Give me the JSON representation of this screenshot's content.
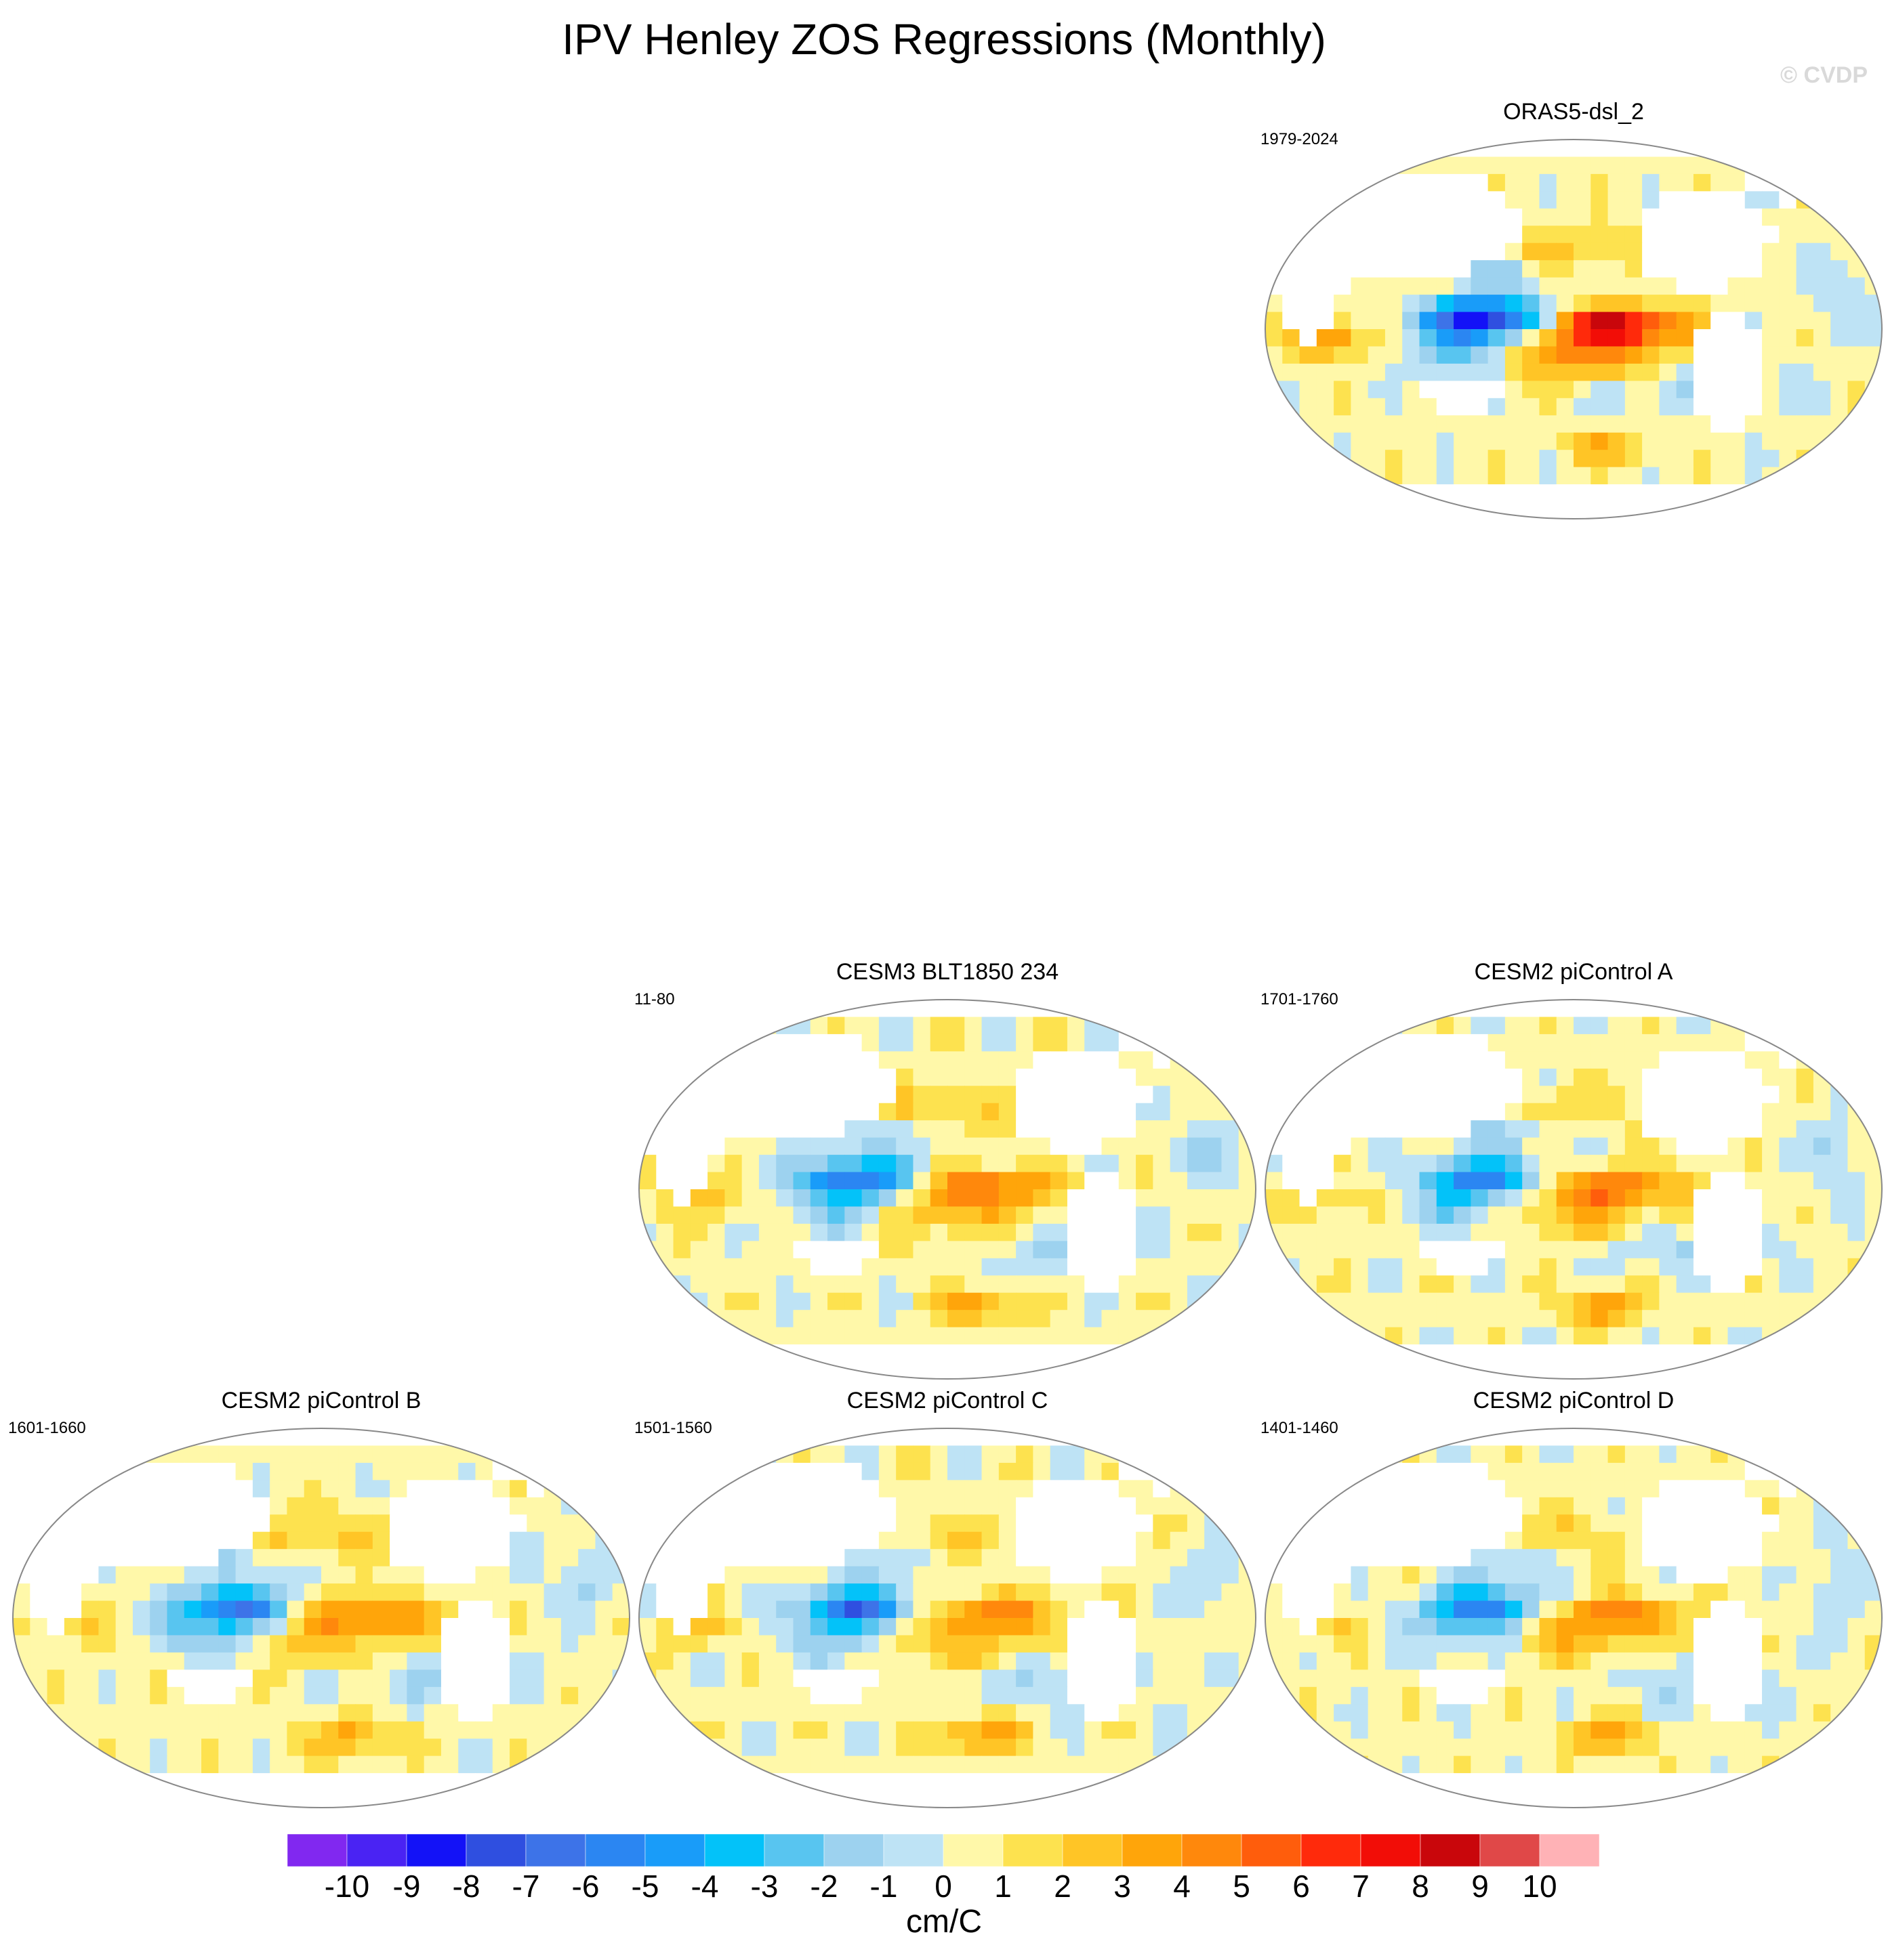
{
  "title": "IPV Henley ZOS Regressions (Monthly)",
  "watermark": "© CVDP",
  "panels": [
    {
      "id": "oras5",
      "title": "ORAS5-dsl_2",
      "period": "1979-2024",
      "pattern": {
        "wpac": -8.5,
        "epac": 7.5,
        "indian": 4,
        "southern": 2.5,
        "npac": 2
      }
    },
    {
      "id": "cesm3",
      "title": "CESM3 BLT1850 234",
      "period": "11-80",
      "pattern": {
        "wpac": -6,
        "epac": 4.5,
        "indian": 2.5,
        "southern": 3,
        "npac": 2
      }
    },
    {
      "id": "cesm2a",
      "title": "CESM2 piControl A",
      "period": "1701-1760",
      "pattern": {
        "wpac": -5.5,
        "epac": 4.5,
        "indian": 1.5,
        "southern": 3.5,
        "npac": 1.5
      }
    },
    {
      "id": "cesm2b",
      "title": "CESM2 piControl B",
      "period": "1601-1660",
      "pattern": {
        "wpac": -6,
        "epac": 4,
        "indian": 1.5,
        "southern": 3,
        "npac": 2
      }
    },
    {
      "id": "cesm2c",
      "title": "CESM2 piControl C",
      "period": "1501-1560",
      "pattern": {
        "wpac": -6,
        "epac": 4,
        "indian": 2,
        "southern": 3.5,
        "npac": 1.5
      }
    },
    {
      "id": "cesm2d",
      "title": "CESM2 piControl D",
      "period": "1401-1460",
      "pattern": {
        "wpac": -5.5,
        "epac": 4,
        "indian": 1.5,
        "southern": 3,
        "npac": 1.5
      }
    }
  ],
  "colorbar": {
    "units": "cm/C",
    "labels": [
      "-10",
      "-9",
      "-8",
      "-7",
      "-6",
      "-5",
      "-4",
      "-3",
      "-2",
      "-1",
      "0",
      "1",
      "2",
      "3",
      "4",
      "5",
      "6",
      "7",
      "8",
      "9",
      "10"
    ],
    "colors": [
      "#8128f0",
      "#4a23f3",
      "#1312f7",
      "#2f4fe0",
      "#3d73e8",
      "#2b86f2",
      "#199cf9",
      "#03c2f9",
      "#58c5f0",
      "#9dd2ef",
      "#bee3f5",
      "#fff8a9",
      "#fde24f",
      "#ffc526",
      "#ffa50a",
      "#ff880c",
      "#ff5d0c",
      "#ff2a0b",
      "#f20d07",
      "#c9060b",
      "#e04848",
      "#ffb2b6"
    ]
  }
}
